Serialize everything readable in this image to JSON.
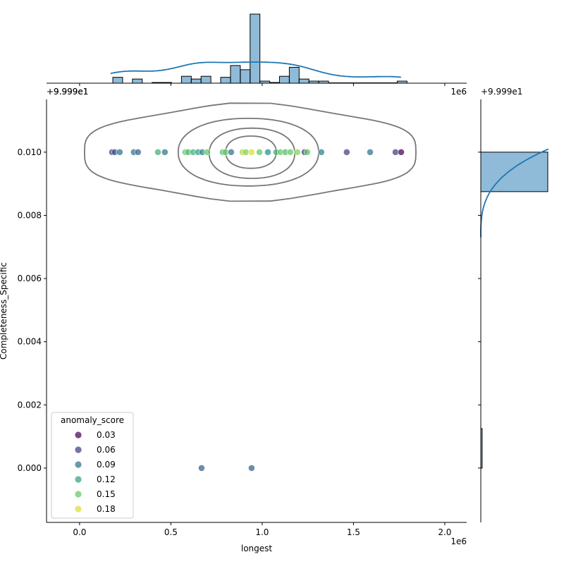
{
  "chart_data": {
    "type": "scatter",
    "kind": "jointplot",
    "xlabel": "longest",
    "ylabel": "Completeness_Specific",
    "x_offset_text": "1e6",
    "y_offset_text": "+9.999e1",
    "top_marginal_offset_text": "+9.999e1",
    "top_marginal_scale_text": "1e6",
    "right_marginal_offset_text": "+9.999e1",
    "xlim": [
      -0.181,
      2.12
    ],
    "ylim": [
      -0.00172,
      0.01167
    ],
    "x_ticks": [
      "0.0",
      "0.5",
      "1.0",
      "1.5",
      "2.0"
    ],
    "x_tick_values": [
      0,
      0.5,
      1.0,
      1.5,
      2.0
    ],
    "y_ticks": [
      "0.000",
      "0.002",
      "0.004",
      "0.006",
      "0.008",
      "0.010"
    ],
    "y_tick_values": [
      0,
      0.002,
      0.004,
      0.006,
      0.008,
      0.01
    ],
    "grid": false,
    "colormap": "viridis",
    "hue_range": [
      0.03,
      0.19
    ],
    "legend": {
      "title": "anomaly_score",
      "placement": "lower-left",
      "entries": [
        "0.03",
        "0.06",
        "0.09",
        "0.12",
        "0.15",
        "0.18"
      ],
      "values": [
        0.03,
        0.06,
        0.09,
        0.12,
        0.15,
        0.18
      ]
    },
    "points": [
      {
        "x": 0.178,
        "y": 0.01,
        "hue": 0.06
      },
      {
        "x": 0.193,
        "y": 0.01,
        "hue": 0.07
      },
      {
        "x": 0.22,
        "y": 0.01,
        "hue": 0.09
      },
      {
        "x": 0.297,
        "y": 0.01,
        "hue": 0.09
      },
      {
        "x": 0.32,
        "y": 0.01,
        "hue": 0.08
      },
      {
        "x": 0.429,
        "y": 0.01,
        "hue": 0.13
      },
      {
        "x": 0.467,
        "y": 0.01,
        "hue": 0.09
      },
      {
        "x": 0.579,
        "y": 0.01,
        "hue": 0.15
      },
      {
        "x": 0.595,
        "y": 0.01,
        "hue": 0.14
      },
      {
        "x": 0.622,
        "y": 0.01,
        "hue": 0.13
      },
      {
        "x": 0.649,
        "y": 0.01,
        "hue": 0.12
      },
      {
        "x": 0.672,
        "y": 0.01,
        "hue": 0.1
      },
      {
        "x": 0.699,
        "y": 0.01,
        "hue": 0.15
      },
      {
        "x": 0.784,
        "y": 0.01,
        "hue": 0.14
      },
      {
        "x": 0.799,
        "y": 0.01,
        "hue": 0.15
      },
      {
        "x": 0.83,
        "y": 0.01,
        "hue": 0.09
      },
      {
        "x": 0.892,
        "y": 0.01,
        "hue": 0.17
      },
      {
        "x": 0.911,
        "y": 0.01,
        "hue": 0.16
      },
      {
        "x": 0.942,
        "y": 0.01,
        "hue": 0.18
      },
      {
        "x": 0.985,
        "y": 0.01,
        "hue": 0.15
      },
      {
        "x": 1.031,
        "y": 0.01,
        "hue": 0.11
      },
      {
        "x": 1.077,
        "y": 0.01,
        "hue": 0.13
      },
      {
        "x": 1.1,
        "y": 0.01,
        "hue": 0.15
      },
      {
        "x": 1.127,
        "y": 0.01,
        "hue": 0.14
      },
      {
        "x": 1.154,
        "y": 0.01,
        "hue": 0.15
      },
      {
        "x": 1.193,
        "y": 0.01,
        "hue": 0.16
      },
      {
        "x": 1.232,
        "y": 0.01,
        "hue": 0.06
      },
      {
        "x": 1.247,
        "y": 0.01,
        "hue": 0.15
      },
      {
        "x": 1.324,
        "y": 0.01,
        "hue": 0.1
      },
      {
        "x": 1.463,
        "y": 0.01,
        "hue": 0.06
      },
      {
        "x": 1.591,
        "y": 0.01,
        "hue": 0.09
      },
      {
        "x": 1.73,
        "y": 0.01,
        "hue": 0.06
      },
      {
        "x": 1.761,
        "y": 0.01,
        "hue": 0.03
      },
      {
        "x": 0.668,
        "y": 0.0,
        "hue": 0.08
      },
      {
        "x": 0.942,
        "y": 0.0,
        "hue": 0.08
      }
    ],
    "contours": [
      {
        "x": [
          0.027,
          1.842
        ],
        "y": [
          0.00842,
          0.01158
        ]
      },
      {
        "x": [
          0.54,
          1.309
        ],
        "y": [
          0.00893,
          0.01107
        ]
      },
      {
        "x": [
          0.71,
          1.178
        ],
        "y": [
          0.00917,
          0.01076
        ]
      },
      {
        "x": [
          0.8,
          1.077
        ],
        "y": [
          0.00949,
          0.01051
        ]
      }
    ],
    "top_histogram": {
      "bin_start": 0.182,
      "bin_width": 0.0537,
      "relative_heights": [
        8.5,
        0,
        6,
        0,
        1,
        1,
        0,
        10,
        6,
        10,
        0,
        8.5,
        25.6,
        19.5,
        100,
        3,
        1,
        10,
        23,
        6,
        3,
        3,
        0.5,
        0.5,
        0.5,
        0.5,
        0.5,
        0.5,
        0.5,
        3
      ]
    },
    "right_histogram": {
      "bins": [
        {
          "y": [
            0.00875,
            0.01
          ],
          "relative_width": 100
        },
        {
          "y": [
            0.0,
            0.00125
          ],
          "relative_width": 2
        }
      ]
    },
    "colors": {
      "hist_fill": "#1f77b4",
      "kde_line": "#1f77b4",
      "contour": "#777777"
    }
  }
}
